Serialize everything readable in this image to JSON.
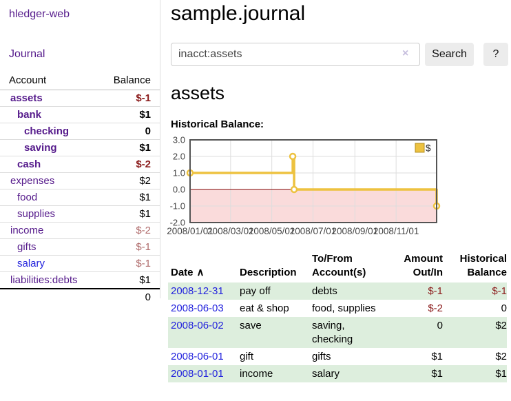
{
  "sidebar": {
    "brand": "hledger-web",
    "journal_link": "Journal",
    "table": {
      "account_header": "Account",
      "balance_header": "Balance",
      "accounts": [
        {
          "name": "assets",
          "balance": "$-1"
        },
        {
          "name": "bank",
          "balance": "$1"
        },
        {
          "name": "checking",
          "balance": "0"
        },
        {
          "name": "saving",
          "balance": "$1"
        },
        {
          "name": "cash",
          "balance": "$-2"
        },
        {
          "name": "expenses",
          "balance": "$2"
        },
        {
          "name": "food",
          "balance": "$1"
        },
        {
          "name": "supplies",
          "balance": "$1"
        },
        {
          "name": "income",
          "balance": "$-2"
        },
        {
          "name": "gifts",
          "balance": "$-1"
        },
        {
          "name": "salary",
          "balance": "$-1"
        },
        {
          "name": "liabilities:debts",
          "balance": "$1"
        }
      ],
      "total": "0"
    }
  },
  "header": {
    "title": "sample.journal",
    "search": {
      "value": "inacct:assets",
      "clear_icon": "×",
      "search_button": "Search",
      "help_button": "?"
    }
  },
  "register": {
    "heading": "assets",
    "chart_title": "Historical Balance:",
    "table": {
      "headers": {
        "date": "Date",
        "sort_indicator": "∧",
        "description": "Description",
        "account": "To/From Account(s)",
        "amount": "Amount Out/In",
        "balance": "Historical Balance"
      },
      "rows": [
        {
          "date": "2008-12-31",
          "description": "pay off",
          "accounts": "debts",
          "amount": "$-1",
          "balance": "$-1"
        },
        {
          "date": "2008-06-03",
          "description": "eat & shop",
          "accounts": "food, supplies",
          "amount": "$-2",
          "balance": "0"
        },
        {
          "date": "2008-06-02",
          "description": "save",
          "accounts": "saving, checking",
          "amount": "0",
          "balance": "$2"
        },
        {
          "date": "2008-06-01",
          "description": "gift",
          "accounts": "gifts",
          "amount": "$1",
          "balance": "$2"
        },
        {
          "date": "2008-01-01",
          "description": "income",
          "accounts": "salary",
          "amount": "$1",
          "balance": "$1"
        }
      ]
    }
  },
  "chart_data": {
    "type": "line",
    "subtype": "step-after-with-markers",
    "title": "Historical Balance:",
    "series": [
      {
        "name": "$",
        "color": "#edc240",
        "points": [
          [
            "2008-01-01",
            1
          ],
          [
            "2008-06-01",
            2
          ],
          [
            "2008-06-03",
            0
          ],
          [
            "2008-12-31",
            -1
          ]
        ]
      }
    ],
    "x_range": [
      "2008-01-01",
      "2008-12-31"
    ],
    "x_tick_labels": [
      "2008/01/01",
      "2008/03/01",
      "2008/05/01",
      "2008/07/01",
      "2008/09/01",
      "2008/11/01"
    ],
    "y_ticks": [
      3.0,
      2.0,
      1.0,
      0.0,
      -1.0,
      -2.0
    ],
    "ylim": [
      -2,
      3
    ],
    "grid": true,
    "legend_position": "top-right",
    "negative_region_color": "#fadbdb",
    "zero_line_color": "#800000",
    "border_color": "#545454",
    "grid_color": "#dddddd",
    "tick_label_color": "#444444"
  }
}
